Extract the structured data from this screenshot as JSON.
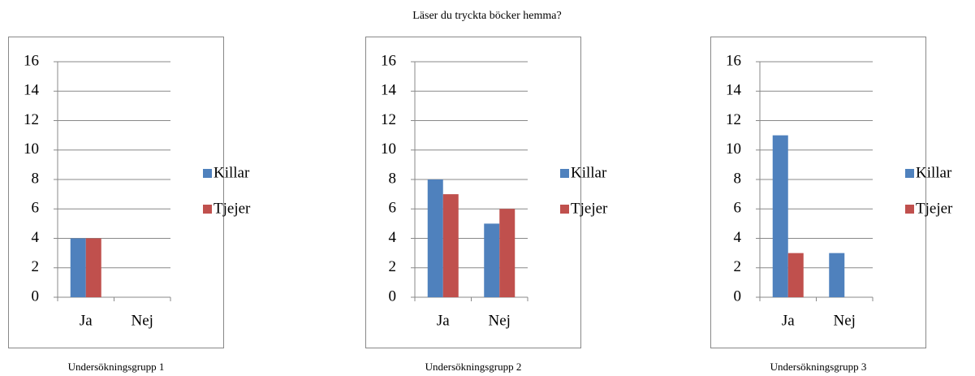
{
  "title": "Läser du tryckta böcker hemma?",
  "chart_data": [
    {
      "type": "bar",
      "caption": "Undersökningsgrupp 1",
      "categories": [
        "Ja",
        "Nej"
      ],
      "series": [
        {
          "name": "Killar",
          "color": "#4f81bd",
          "values": [
            4,
            0
          ]
        },
        {
          "name": "Tjejer",
          "color": "#c0504d",
          "values": [
            4,
            0
          ]
        }
      ],
      "ylim": [
        0,
        16
      ],
      "yticks": [
        0,
        2,
        4,
        6,
        8,
        10,
        12,
        14,
        16
      ],
      "grid": true,
      "legend": "right"
    },
    {
      "type": "bar",
      "caption": "Undersökningsgrupp 2",
      "categories": [
        "Ja",
        "Nej"
      ],
      "series": [
        {
          "name": "Killar",
          "color": "#4f81bd",
          "values": [
            8,
            5
          ]
        },
        {
          "name": "Tjejer",
          "color": "#c0504d",
          "values": [
            7,
            6
          ]
        }
      ],
      "ylim": [
        0,
        16
      ],
      "yticks": [
        0,
        2,
        4,
        6,
        8,
        10,
        12,
        14,
        16
      ],
      "grid": true,
      "legend": "right"
    },
    {
      "type": "bar",
      "caption": "Undersökningsgrupp 3",
      "categories": [
        "Ja",
        "Nej"
      ],
      "series": [
        {
          "name": "Killar",
          "color": "#4f81bd",
          "values": [
            11,
            3
          ]
        },
        {
          "name": "Tjejer",
          "color": "#c0504d",
          "values": [
            3,
            0
          ]
        }
      ],
      "ylim": [
        0,
        16
      ],
      "yticks": [
        0,
        2,
        4,
        6,
        8,
        10,
        12,
        14,
        16
      ],
      "grid": true,
      "legend": "right"
    }
  ]
}
